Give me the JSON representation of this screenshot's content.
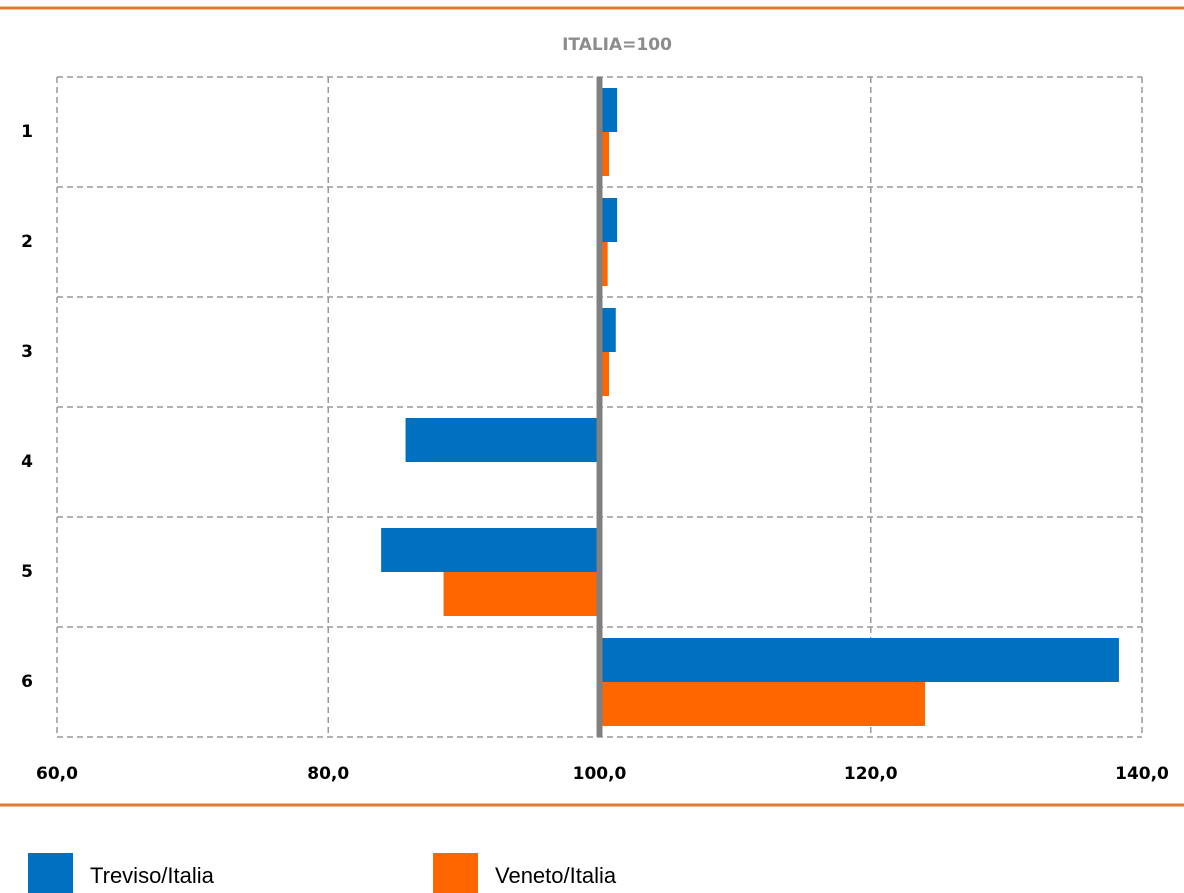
{
  "chart_data": {
    "type": "bar",
    "orientation": "horizontal",
    "title": "ITALIA=100",
    "categories": [
      "1",
      "2",
      "3",
      "4",
      "5",
      "6"
    ],
    "bar_base": 100,
    "series": [
      {
        "name": "Treviso/Italia",
        "color": "#0070c0",
        "values": [
          101.3,
          101.3,
          101.2,
          85.7,
          83.9,
          138.3
        ]
      },
      {
        "name": "Veneto/Italia",
        "color": "#ff6600",
        "values": [
          100.7,
          100.6,
          100.7,
          100,
          88.5,
          124.0
        ]
      }
    ],
    "xlim": [
      60,
      140
    ],
    "xticks": [
      {
        "value": 60,
        "label": "60,0"
      },
      {
        "value": 80,
        "label": "80,0"
      },
      {
        "value": 100,
        "label": "100,0"
      },
      {
        "value": 120,
        "label": "120,0"
      },
      {
        "value": 140,
        "label": "140,0"
      }
    ],
    "grid": true,
    "legend": "bottom"
  }
}
